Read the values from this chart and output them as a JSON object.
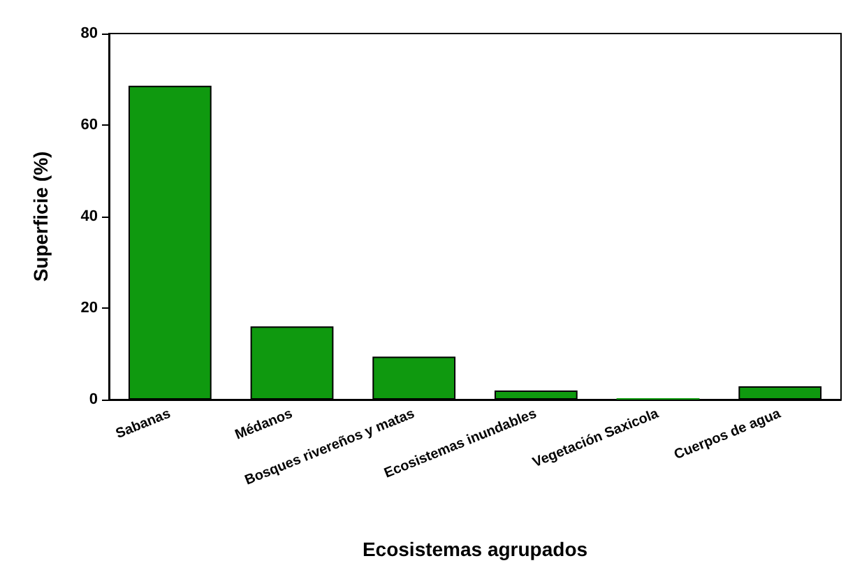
{
  "chart_data": {
    "type": "bar",
    "xlabel": "Ecosistemas agrupados",
    "ylabel": "Superficie (%)",
    "categories": [
      "Sabanas",
      "Médanos",
      "Bosques rivereños y matas",
      "Ecosistemas inundables",
      "Vegetación Saxicola",
      "Cuerpos de agua"
    ],
    "values": [
      68.6,
      16,
      9.4,
      2,
      0.3,
      2.9
    ],
    "color": "#0f990f",
    "ylim": [
      0,
      80
    ],
    "yticks": [
      0,
      20,
      40,
      60,
      80
    ],
    "grid": false
  }
}
